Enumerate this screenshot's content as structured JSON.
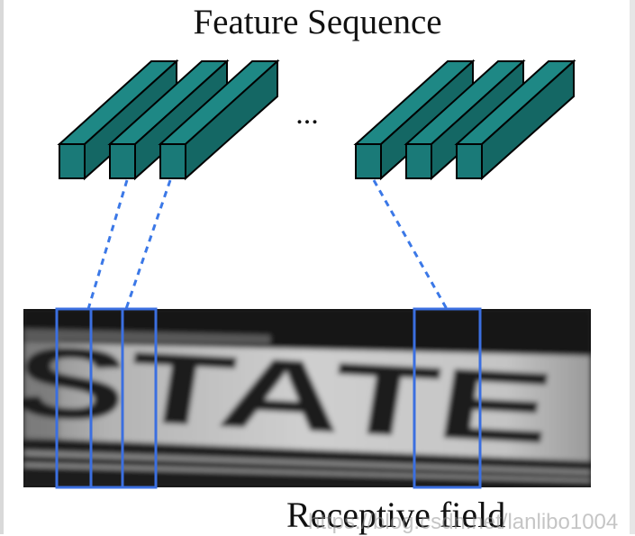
{
  "title": "Feature Sequence",
  "ellipsis": "...",
  "caption": "Receptive field",
  "image_text": "STATE",
  "watermark": "https://blog.csdn.net/lanlibo1004",
  "colors": {
    "cube": "#1a7a78",
    "cube_top": "#1e8885",
    "cube_side": "#146764",
    "outline": "#000000",
    "dashes": "#3b78e7",
    "box": "#3b6fe0"
  }
}
